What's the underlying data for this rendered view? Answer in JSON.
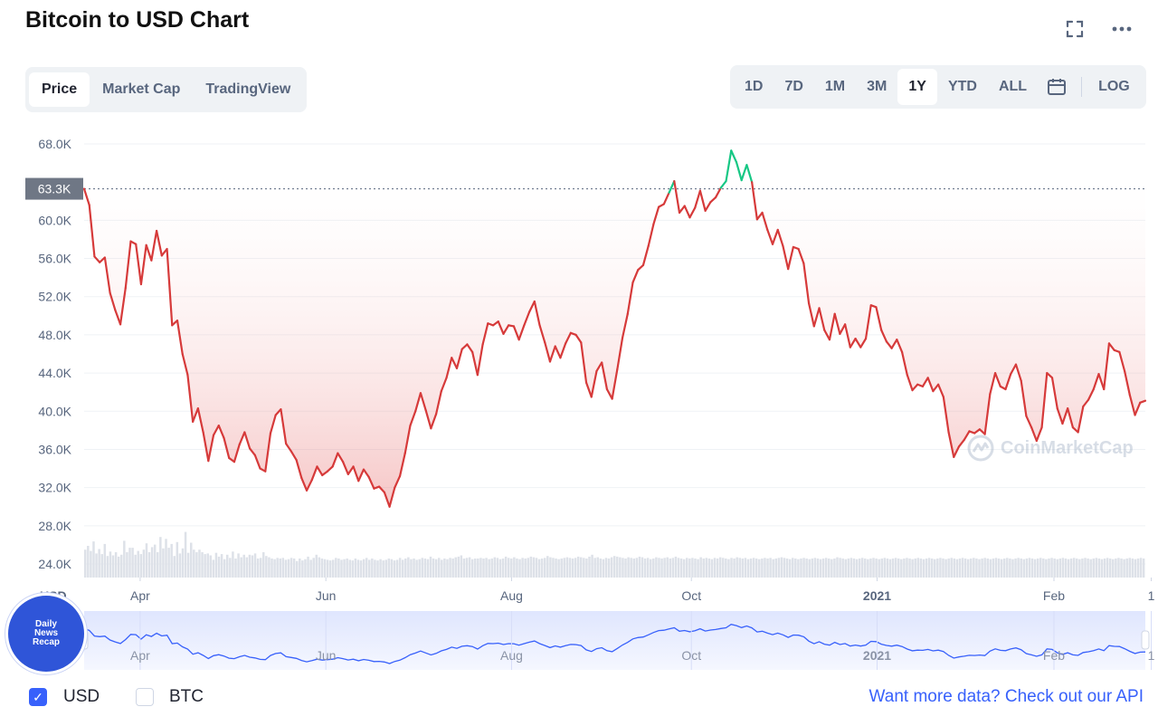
{
  "header": {
    "title": "Bitcoin to USD Chart"
  },
  "icons": {
    "fullscreen": "fullscreen-icon",
    "more": "more-icon",
    "calendar": "calendar-icon",
    "checkmark": "checkmark-icon"
  },
  "view_tabs": [
    {
      "label": "Price",
      "active": true
    },
    {
      "label": "Market Cap",
      "active": false
    },
    {
      "label": "TradingView",
      "active": false
    }
  ],
  "range_tabs": [
    {
      "label": "1D",
      "active": false
    },
    {
      "label": "7D",
      "active": false
    },
    {
      "label": "1M",
      "active": false
    },
    {
      "label": "3M",
      "active": false
    },
    {
      "label": "1Y",
      "active": true
    },
    {
      "label": "YTD",
      "active": false
    },
    {
      "label": "ALL",
      "active": false
    }
  ],
  "log_label": "LOG",
  "footer": {
    "usd_label": "USD",
    "usd_checked": true,
    "btc_label": "BTC",
    "btc_checked": false,
    "api_text": "Want more data? Check out our API"
  },
  "watermark": "CoinMarketCap",
  "badge_lines": [
    "Daily",
    "News",
    "Recap"
  ],
  "colors": {
    "accent": "#3861fb",
    "down": "#d63a3a",
    "up": "#16c784",
    "brush": "#3861fb"
  },
  "chart_data": {
    "type": "line",
    "title": "",
    "ylabel": "USD",
    "y_ticks": [
      "68.0K",
      "60.0K",
      "56.0K",
      "52.0K",
      "48.0K",
      "44.0K",
      "40.0K",
      "36.0K",
      "32.0K",
      "28.0K",
      "24.0K"
    ],
    "y_tick_values": [
      68000,
      60000,
      56000,
      52000,
      48000,
      44000,
      40000,
      36000,
      32000,
      28000,
      24000
    ],
    "x_ticks": [
      {
        "label": "Apr",
        "bold": false
      },
      {
        "label": "Jun",
        "bold": false
      },
      {
        "label": "Aug",
        "bold": false
      },
      {
        "label": "Oct",
        "bold": false
      },
      {
        "label": "2021",
        "bold": true
      },
      {
        "label": "Feb",
        "bold": false
      },
      {
        "label": "1",
        "bold": false
      }
    ],
    "ylim": [
      24000,
      68000
    ],
    "grid": true,
    "reference_line": {
      "value": 63300,
      "label": "63.3K"
    },
    "x_index_count": 360,
    "x_tick_index": [
      19,
      82,
      145,
      206,
      269,
      329,
      362
    ],
    "series": [
      {
        "points": [
          [
            0,
            63300
          ],
          [
            2,
            61600
          ],
          [
            4,
            56200
          ],
          [
            6,
            55600
          ],
          [
            8,
            56100
          ],
          [
            10,
            52400
          ],
          [
            12,
            50600
          ],
          [
            14,
            49100
          ],
          [
            16,
            52900
          ],
          [
            18,
            57800
          ],
          [
            20,
            57500
          ],
          [
            22,
            53300
          ],
          [
            24,
            57400
          ],
          [
            26,
            55800
          ],
          [
            28,
            58900
          ],
          [
            30,
            56300
          ],
          [
            32,
            57000
          ],
          [
            34,
            49000
          ],
          [
            36,
            49500
          ],
          [
            38,
            46000
          ],
          [
            40,
            43800
          ],
          [
            42,
            38900
          ],
          [
            44,
            40300
          ],
          [
            46,
            37800
          ],
          [
            48,
            34800
          ],
          [
            50,
            37500
          ],
          [
            52,
            38500
          ],
          [
            54,
            37200
          ],
          [
            56,
            35100
          ],
          [
            58,
            34700
          ],
          [
            60,
            36500
          ],
          [
            62,
            37800
          ],
          [
            64,
            36100
          ],
          [
            66,
            35400
          ],
          [
            68,
            34000
          ],
          [
            70,
            33700
          ],
          [
            72,
            37700
          ],
          [
            74,
            39600
          ],
          [
            76,
            40200
          ],
          [
            78,
            36600
          ],
          [
            80,
            35800
          ],
          [
            82,
            34900
          ],
          [
            84,
            33000
          ],
          [
            86,
            31700
          ],
          [
            88,
            32800
          ],
          [
            90,
            34200
          ],
          [
            92,
            33300
          ],
          [
            94,
            33700
          ],
          [
            96,
            34200
          ],
          [
            98,
            35600
          ],
          [
            100,
            34700
          ],
          [
            102,
            33400
          ],
          [
            104,
            34200
          ],
          [
            106,
            32700
          ],
          [
            108,
            33900
          ],
          [
            110,
            33100
          ],
          [
            112,
            31900
          ],
          [
            114,
            32100
          ],
          [
            116,
            31500
          ],
          [
            118,
            30000
          ],
          [
            120,
            32000
          ],
          [
            122,
            33200
          ],
          [
            124,
            35600
          ],
          [
            126,
            38500
          ],
          [
            128,
            40000
          ],
          [
            130,
            41900
          ],
          [
            132,
            40100
          ],
          [
            134,
            38200
          ],
          [
            136,
            39700
          ],
          [
            138,
            42100
          ],
          [
            140,
            43500
          ],
          [
            142,
            45600
          ],
          [
            144,
            44500
          ],
          [
            146,
            46500
          ],
          [
            148,
            47000
          ],
          [
            150,
            46200
          ],
          [
            152,
            43800
          ],
          [
            154,
            47000
          ],
          [
            156,
            49200
          ],
          [
            158,
            49000
          ],
          [
            160,
            49400
          ],
          [
            162,
            48100
          ],
          [
            164,
            49000
          ],
          [
            166,
            48900
          ],
          [
            168,
            47500
          ],
          [
            170,
            49000
          ],
          [
            172,
            50400
          ],
          [
            174,
            51500
          ],
          [
            176,
            49000
          ],
          [
            178,
            47200
          ],
          [
            180,
            45200
          ],
          [
            182,
            46800
          ],
          [
            184,
            45600
          ],
          [
            186,
            47100
          ],
          [
            188,
            48200
          ],
          [
            190,
            48000
          ],
          [
            192,
            47200
          ],
          [
            194,
            43000
          ],
          [
            196,
            41500
          ],
          [
            198,
            44200
          ],
          [
            200,
            45100
          ],
          [
            202,
            42300
          ],
          [
            204,
            41300
          ],
          [
            206,
            44400
          ],
          [
            208,
            47700
          ],
          [
            210,
            50200
          ],
          [
            212,
            53500
          ],
          [
            214,
            54800
          ],
          [
            216,
            55300
          ],
          [
            218,
            57300
          ],
          [
            220,
            59600
          ],
          [
            222,
            61400
          ],
          [
            224,
            61700
          ],
          [
            226,
            62900
          ],
          [
            228,
            64100
          ],
          [
            230,
            60800
          ],
          [
            232,
            61500
          ],
          [
            234,
            60300
          ],
          [
            236,
            61300
          ],
          [
            238,
            63100
          ],
          [
            240,
            61000
          ],
          [
            242,
            61900
          ],
          [
            244,
            62400
          ],
          [
            246,
            63400
          ],
          [
            248,
            64100
          ],
          [
            250,
            67300
          ],
          [
            252,
            66100
          ],
          [
            254,
            64200
          ],
          [
            256,
            65800
          ],
          [
            258,
            64000
          ],
          [
            260,
            60100
          ],
          [
            262,
            60800
          ],
          [
            264,
            59000
          ],
          [
            266,
            57500
          ],
          [
            268,
            59000
          ],
          [
            270,
            57300
          ],
          [
            272,
            54900
          ],
          [
            274,
            57200
          ],
          [
            276,
            57000
          ],
          [
            278,
            55500
          ],
          [
            280,
            51300
          ],
          [
            282,
            48900
          ],
          [
            284,
            50800
          ],
          [
            286,
            48500
          ],
          [
            288,
            47500
          ],
          [
            290,
            50200
          ],
          [
            292,
            48100
          ],
          [
            294,
            49100
          ],
          [
            296,
            46700
          ],
          [
            298,
            47600
          ],
          [
            300,
            46700
          ],
          [
            302,
            47600
          ],
          [
            304,
            51100
          ],
          [
            306,
            50900
          ],
          [
            308,
            48500
          ],
          [
            310,
            47300
          ],
          [
            312,
            46600
          ],
          [
            314,
            47500
          ],
          [
            316,
            46200
          ],
          [
            318,
            43800
          ],
          [
            320,
            42200
          ],
          [
            322,
            42800
          ],
          [
            324,
            42600
          ],
          [
            326,
            43500
          ],
          [
            328,
            42100
          ],
          [
            330,
            42800
          ],
          [
            332,
            41500
          ],
          [
            334,
            37800
          ],
          [
            336,
            35200
          ],
          [
            338,
            36300
          ],
          [
            340,
            37000
          ],
          [
            342,
            37900
          ],
          [
            344,
            37700
          ],
          [
            346,
            38100
          ],
          [
            348,
            37600
          ],
          [
            350,
            41800
          ],
          [
            352,
            44000
          ],
          [
            354,
            42600
          ],
          [
            356,
            42300
          ],
          [
            358,
            43900
          ],
          [
            360,
            44900
          ],
          [
            362,
            43200
          ],
          [
            364,
            39500
          ],
          [
            366,
            38300
          ],
          [
            368,
            36900
          ],
          [
            370,
            38300
          ],
          [
            372,
            44000
          ],
          [
            374,
            43500
          ],
          [
            376,
            40300
          ],
          [
            378,
            38700
          ],
          [
            380,
            40300
          ],
          [
            382,
            38300
          ],
          [
            384,
            37800
          ],
          [
            386,
            40500
          ],
          [
            388,
            41200
          ],
          [
            390,
            42300
          ],
          [
            392,
            43900
          ],
          [
            394,
            42300
          ],
          [
            396,
            47100
          ],
          [
            398,
            46400
          ],
          [
            400,
            46200
          ],
          [
            402,
            44200
          ],
          [
            404,
            41700
          ],
          [
            406,
            39600
          ],
          [
            408,
            40900
          ],
          [
            410,
            41100
          ]
        ]
      }
    ],
    "volume_max": 1,
    "volume": [
      0.44,
      0.5,
      0.42,
      0.57,
      0.38,
      0.45,
      0.37,
      0.53,
      0.34,
      0.41,
      0.35,
      0.4,
      0.33,
      0.36,
      0.58,
      0.4,
      0.47,
      0.47,
      0.36,
      0.42,
      0.37,
      0.44,
      0.54,
      0.4,
      0.48,
      0.52,
      0.4,
      0.64,
      0.46,
      0.61,
      0.47,
      0.53,
      0.34,
      0.56,
      0.38,
      0.46,
      0.72,
      0.39,
      0.55,
      0.44,
      0.4,
      0.44,
      0.4,
      0.37,
      0.38,
      0.35,
      0.28,
      0.39,
      0.33,
      0.37,
      0.29,
      0.36,
      0.31,
      0.41,
      0.3,
      0.38,
      0.32,
      0.36,
      0.32,
      0.36,
      0.35,
      0.38,
      0.3,
      0.31,
      0.4,
      0.34,
      0.32,
      0.3,
      0.29,
      0.31,
      0.3,
      0.31,
      0.28,
      0.29,
      0.31,
      0.3,
      0.26,
      0.3,
      0.27,
      0.29,
      0.33,
      0.28,
      0.31,
      0.36,
      0.32,
      0.3,
      0.29,
      0.28,
      0.27,
      0.28,
      0.31,
      0.3,
      0.28,
      0.29,
      0.3,
      0.28,
      0.27,
      0.3,
      0.28,
      0.27,
      0.29,
      0.31,
      0.28,
      0.3,
      0.28,
      0.27,
      0.29,
      0.27,
      0.28,
      0.3,
      0.29,
      0.27,
      0.28,
      0.31,
      0.28,
      0.3,
      0.32,
      0.29,
      0.3,
      0.28,
      0.29,
      0.31,
      0.3,
      0.29,
      0.33,
      0.3,
      0.29,
      0.31,
      0.28,
      0.3,
      0.29,
      0.31,
      0.3,
      0.32,
      0.33,
      0.35,
      0.3,
      0.31,
      0.32,
      0.29,
      0.3,
      0.3,
      0.31,
      0.3,
      0.31,
      0.29,
      0.3,
      0.32,
      0.31,
      0.29,
      0.3,
      0.33,
      0.31,
      0.3,
      0.32,
      0.3,
      0.29,
      0.31,
      0.3,
      0.31,
      0.33,
      0.32,
      0.31,
      0.29,
      0.3,
      0.31,
      0.34,
      0.32,
      0.31,
      0.3,
      0.29,
      0.3,
      0.31,
      0.32,
      0.31,
      0.3,
      0.31,
      0.33,
      0.32,
      0.31,
      0.3,
      0.33,
      0.36,
      0.31,
      0.32,
      0.3,
      0.29,
      0.31,
      0.3,
      0.32,
      0.34,
      0.33,
      0.32,
      0.31,
      0.3,
      0.32,
      0.31,
      0.3,
      0.31,
      0.33,
      0.32,
      0.3,
      0.31,
      0.29,
      0.3,
      0.32,
      0.31,
      0.3,
      0.31,
      0.32,
      0.3,
      0.31,
      0.33,
      0.31,
      0.3,
      0.29,
      0.31,
      0.3,
      0.31,
      0.3,
      0.29,
      0.32,
      0.3,
      0.31,
      0.3,
      0.29,
      0.31,
      0.3,
      0.32,
      0.31,
      0.3,
      0.29,
      0.31,
      0.3,
      0.32,
      0.31,
      0.3,
      0.31,
      0.29,
      0.3,
      0.31,
      0.3,
      0.29,
      0.3,
      0.31,
      0.3,
      0.31,
      0.29,
      0.3,
      0.31,
      0.32,
      0.31,
      0.3,
      0.29,
      0.31,
      0.3,
      0.29,
      0.3,
      0.31,
      0.3,
      0.29,
      0.3,
      0.31,
      0.3,
      0.29,
      0.3,
      0.31,
      0.3,
      0.29,
      0.3,
      0.32,
      0.31,
      0.3,
      0.29,
      0.3,
      0.31,
      0.3,
      0.29,
      0.3,
      0.31,
      0.3,
      0.29,
      0.3,
      0.31,
      0.3,
      0.29,
      0.3,
      0.31,
      0.3,
      0.29,
      0.3,
      0.31,
      0.3,
      0.29,
      0.3,
      0.31,
      0.3,
      0.29,
      0.3,
      0.31,
      0.3,
      0.29,
      0.3,
      0.31,
      0.3,
      0.29,
      0.3,
      0.31,
      0.3,
      0.29,
      0.3,
      0.31,
      0.3,
      0.29,
      0.3,
      0.31,
      0.3,
      0.29,
      0.3,
      0.31,
      0.3,
      0.29,
      0.3,
      0.31,
      0.3,
      0.29,
      0.3,
      0.31,
      0.3,
      0.29,
      0.3,
      0.31,
      0.3,
      0.29,
      0.3,
      0.31,
      0.3,
      0.29,
      0.3,
      0.31,
      0.3,
      0.29,
      0.3,
      0.31,
      0.3,
      0.29,
      0.3,
      0.31,
      0.3,
      0.29,
      0.3,
      0.31,
      0.3,
      0.29,
      0.3,
      0.31,
      0.3,
      0.29,
      0.3,
      0.31,
      0.3,
      0.29,
      0.3,
      0.31,
      0.3,
      0.29,
      0.3,
      0.31,
      0.3,
      0.29,
      0.3,
      0.31,
      0.3,
      0.29,
      0.3,
      0.31,
      0.3,
      0.29,
      0.3,
      0.31,
      0.3
    ]
  }
}
